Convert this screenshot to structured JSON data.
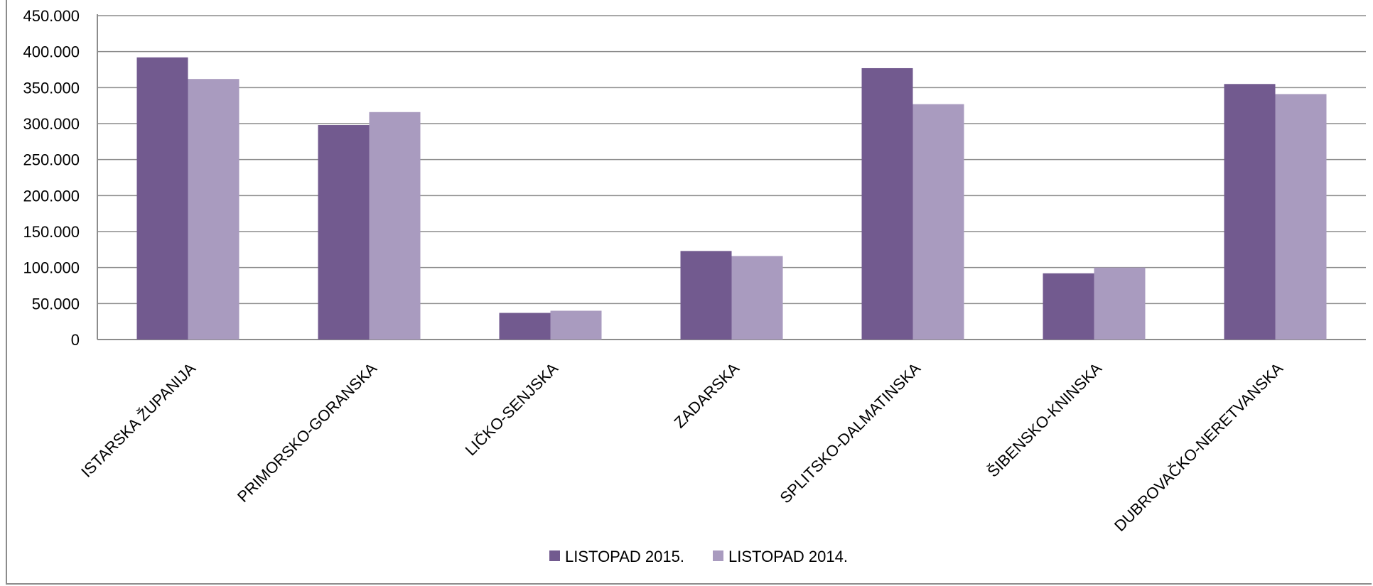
{
  "chart_data": {
    "type": "bar",
    "categories": [
      "ISTARSKA ŽUPANIJA",
      "PRIMORSKO-GORANSKA",
      "LIČKO-SENJSKA",
      "ZADARSKA",
      "SPLITSKO-DALMATINSKA",
      "ŠIBENSKO-KNINSKA",
      "DUBROVAČKO-NERETVANSKA"
    ],
    "series": [
      {
        "name": "LISTOPAD 2015.",
        "color": "#725a8f",
        "values": [
          392000,
          298000,
          37000,
          123000,
          377000,
          92000,
          355000
        ]
      },
      {
        "name": "LISTOPAD 2014.",
        "color": "#a99bbf",
        "values": [
          362000,
          316000,
          40000,
          116000,
          327000,
          100000,
          341000
        ]
      }
    ],
    "ylim": [
      0,
      450000
    ],
    "yticks": [
      "0",
      "50.000",
      "100.000",
      "150.000",
      "200.000",
      "250.000",
      "300.000",
      "350.000",
      "400.000",
      "450.000"
    ],
    "grid": true,
    "legend_position": "bottom"
  }
}
